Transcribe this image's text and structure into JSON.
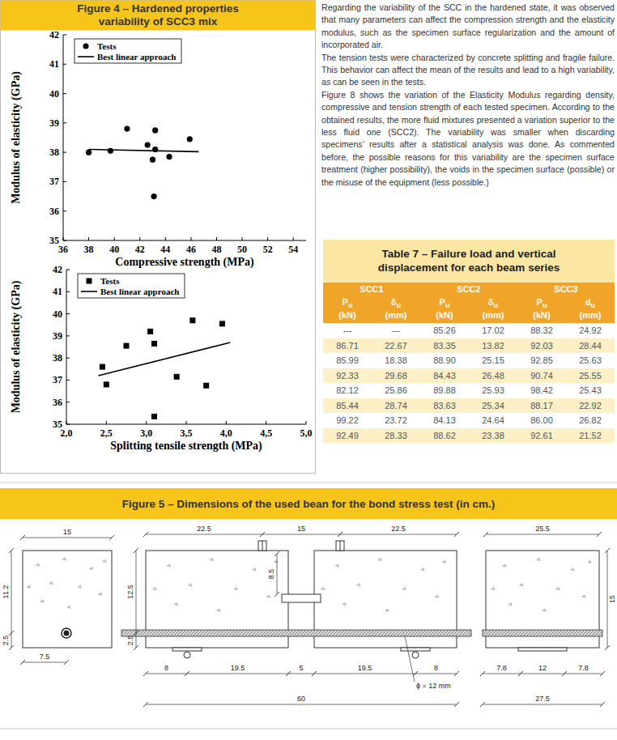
{
  "figure4": {
    "title_lines": [
      "Figure 4 – Hardened properties",
      "variability of SCC3 mix"
    ]
  },
  "chart_data": [
    {
      "type": "scatter",
      "x_label": "Compressive strength (MPa)",
      "y_label": "Modulus of elasticity (GPa)",
      "xlim": [
        36,
        55
      ],
      "xticks": [
        36,
        38,
        40,
        42,
        44,
        46,
        48,
        50,
        52,
        54
      ],
      "ylim": [
        35,
        42
      ],
      "yticks": [
        35,
        36,
        37,
        38,
        39,
        40,
        41,
        42
      ],
      "legend": "upper left",
      "series": [
        {
          "name": "Tests",
          "type": "scatter",
          "marker": "circle",
          "color": "#000000",
          "x": [
            38.0,
            39.7,
            41.0,
            42.6,
            43.2,
            43.2,
            43.0,
            44.3,
            43.1,
            45.9
          ],
          "values": [
            38.0,
            38.05,
            38.8,
            38.25,
            38.75,
            38.1,
            37.75,
            37.85,
            36.5,
            38.45
          ]
        },
        {
          "name": "Best linear approach",
          "type": "line",
          "line_style": "solid",
          "color": "#000000",
          "x": [
            38.0,
            46.6
          ],
          "values": [
            38.1,
            38.02
          ]
        }
      ]
    },
    {
      "type": "scatter",
      "x_label": "Splitting tensile strength (MPa)",
      "y_label": "Modulus of elasticity (GPa)",
      "xlim": [
        2,
        5
      ],
      "xticks": [
        {
          "value": 2,
          "label": "2,0"
        },
        {
          "value": 2.5,
          "label": "2,5"
        },
        {
          "value": 3,
          "label": "3,0"
        },
        {
          "value": 3.5,
          "label": "3,5"
        },
        {
          "value": 4,
          "label": "4,0"
        },
        {
          "value": 4.5,
          "label": "4,5"
        },
        {
          "value": 5,
          "label": "5,0"
        }
      ],
      "ylim": [
        35,
        42
      ],
      "yticks": [
        35,
        36,
        37,
        38,
        39,
        40,
        41,
        42
      ],
      "legend": "upper left",
      "series": [
        {
          "name": "Tests",
          "type": "scatter",
          "marker": "square",
          "color": "#000000",
          "x": [
            2.45,
            2.5,
            2.75,
            3.05,
            3.1,
            3.1,
            3.38,
            3.58,
            3.75,
            3.95
          ],
          "values": [
            37.6,
            36.8,
            38.55,
            39.2,
            38.65,
            35.35,
            37.15,
            39.7,
            36.75,
            39.55
          ]
        },
        {
          "name": "Best linear approach",
          "type": "line",
          "line_style": "solid",
          "color": "#000000",
          "x": [
            2.4,
            4.05
          ],
          "values": [
            37.2,
            38.7
          ]
        }
      ]
    }
  ],
  "text": {
    "paragraphs": [
      "Regarding the variability of the SCC in the hardened state, it was observed that many parameters can affect the compression strength and the elasticity modulus, such as the specimen surface regularization and the amount of incorporated air.",
      "The tension tests were characterized by concrete splitting and fragile failure. This behavior can affect the mean of the results and lead to a high variability, as can be seen in the tests.",
      "Figure 8 shows the variation of the Elasticity Modulus regarding density, compressive and tension strength of each tested specimen. According to the obtained results, the more fluid mixtures presented a variation superior to the less fluid one (SCC2). The variability was smaller when discarding specimens’ results after a statistical analysis was done. As commented before, the possible reasons for this variability are the specimen surface treatment (higher possibility), the voids in the specimen surface (possible) or the misuse of the equipment (less possible.)"
    ]
  },
  "table7": {
    "title_lines": [
      "Table 7 – Failure load and vertical",
      "displacement  for each beam series"
    ],
    "groups": [
      "SCC1",
      "SCC2",
      "SCC3"
    ],
    "columns": [
      {
        "symbol": "P",
        "sub": "u",
        "unit": "(kN)"
      },
      {
        "symbol": "δ",
        "sub": "u",
        "unit": "(mm)"
      },
      {
        "symbol": "P",
        "sub": "u",
        "unit": "(kN)"
      },
      {
        "symbol": "δ",
        "sub": "u",
        "unit": "(mm)"
      },
      {
        "symbol": "P",
        "sub": "u",
        "unit": "(kN)"
      },
      {
        "symbol": "d",
        "sub": "u",
        "unit": "(mm)"
      }
    ],
    "rows": [
      [
        "---",
        "---",
        "85.26",
        "17.02",
        "88.32",
        "24.92"
      ],
      [
        "86.71",
        "22.67",
        "83.35",
        "13.82",
        "92.03",
        "28.44"
      ],
      [
        "85.99",
        "18.38",
        "88.90",
        "25.15",
        "92.85",
        "25.63"
      ],
      [
        "92.33",
        "29.68",
        "84.43",
        "26.48",
        "90.74",
        "25.55"
      ],
      [
        "82.12",
        "25.86",
        "89.88",
        "25.93",
        "98.42",
        "25.43"
      ],
      [
        "85.44",
        "28.74",
        "83.63",
        "25.34",
        "88.17",
        "22.92"
      ],
      [
        "99.22",
        "23.72",
        "84.13",
        "24.64",
        "86.00",
        "26.82"
      ],
      [
        "92.49",
        "28.33",
        "88.62",
        "23.38",
        "92.61",
        "21.52"
      ]
    ]
  },
  "figure5": {
    "title": "Figure 5 – Dimensions of the used bean for the bond stress test (in cm.)",
    "section": {
      "width": "15",
      "upper": "11.2",
      "lower": "2.5",
      "bar_offset": "7.5"
    },
    "elevation": {
      "top": [
        "22.5",
        "15",
        "22.5"
      ],
      "left_upper": "12.5",
      "left_lower": "2.5",
      "notch": "8.5",
      "bottom": [
        "8",
        "19.5",
        "5",
        "19.5",
        "8"
      ],
      "total": "60",
      "bar": "ϕ = 12 mm"
    },
    "side": {
      "top": "25.5",
      "height": "15",
      "bottom": [
        "7.8",
        "12",
        "7.8"
      ],
      "total": "27.5"
    }
  }
}
